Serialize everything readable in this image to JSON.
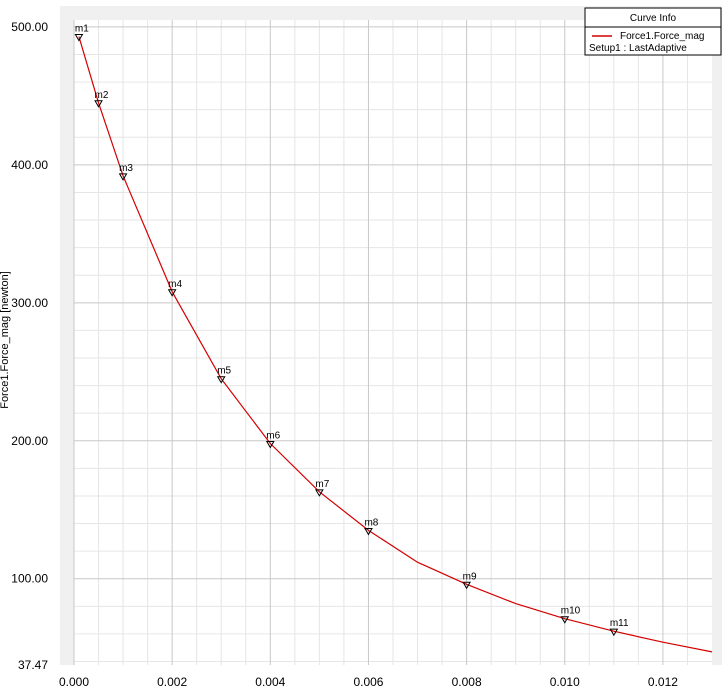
{
  "colors": {
    "curve": "#d40000",
    "plot_background": "#ffffff",
    "outer_background": "#f0f0f0",
    "grid_major": "#c8c8c8",
    "grid_minor": "#e6e6e6"
  },
  "legend": {
    "title": "Curve Info",
    "series_name": "Force1.Force_mag",
    "setup_label": "Setup1 : LastAdaptive"
  },
  "chart_data": {
    "type": "line",
    "ylabel": "Force1.Force_mag [newton]",
    "xlim": [
      0.0,
      0.013
    ],
    "ylim": [
      37.47,
      505
    ],
    "grid": true,
    "legend_position": "top-right",
    "x_ticks": [
      {
        "value": 0.0,
        "label": "0.000"
      },
      {
        "value": 0.002,
        "label": "0.002"
      },
      {
        "value": 0.004,
        "label": "0.004"
      },
      {
        "value": 0.006,
        "label": "0.006"
      },
      {
        "value": 0.008,
        "label": "0.008"
      },
      {
        "value": 0.01,
        "label": "0.010"
      },
      {
        "value": 0.012,
        "label": "0.012"
      }
    ],
    "y_ticks": [
      {
        "value": 500.0,
        "label": "500.00"
      },
      {
        "value": 400.0,
        "label": "400.00"
      },
      {
        "value": 300.0,
        "label": "300.00"
      },
      {
        "value": 200.0,
        "label": "200.00"
      },
      {
        "value": 100.0,
        "label": "100.00"
      },
      {
        "value": 37.47,
        "label": "37.47"
      }
    ],
    "series": [
      {
        "name": "Force1.Force_mag",
        "x": [
          0.0001,
          0.0005,
          0.001,
          0.002,
          0.003,
          0.004,
          0.005,
          0.006,
          0.007,
          0.008,
          0.009,
          0.01,
          0.011,
          0.012,
          0.013
        ],
        "y": [
          493,
          445,
          392,
          308,
          245,
          198,
          163,
          135,
          112,
          96,
          82,
          71,
          62,
          54,
          47
        ]
      }
    ],
    "markers": [
      {
        "label": "m1",
        "x": 0.0001,
        "y": 493
      },
      {
        "label": "m2",
        "x": 0.0005,
        "y": 445
      },
      {
        "label": "m3",
        "x": 0.001,
        "y": 392
      },
      {
        "label": "m4",
        "x": 0.002,
        "y": 308
      },
      {
        "label": "m5",
        "x": 0.003,
        "y": 245
      },
      {
        "label": "m6",
        "x": 0.004,
        "y": 198
      },
      {
        "label": "m7",
        "x": 0.005,
        "y": 163
      },
      {
        "label": "m8",
        "x": 0.006,
        "y": 135
      },
      {
        "label": "m9",
        "x": 0.008,
        "y": 96
      },
      {
        "label": "m10",
        "x": 0.01,
        "y": 71
      },
      {
        "label": "m11",
        "x": 0.011,
        "y": 62
      }
    ]
  }
}
